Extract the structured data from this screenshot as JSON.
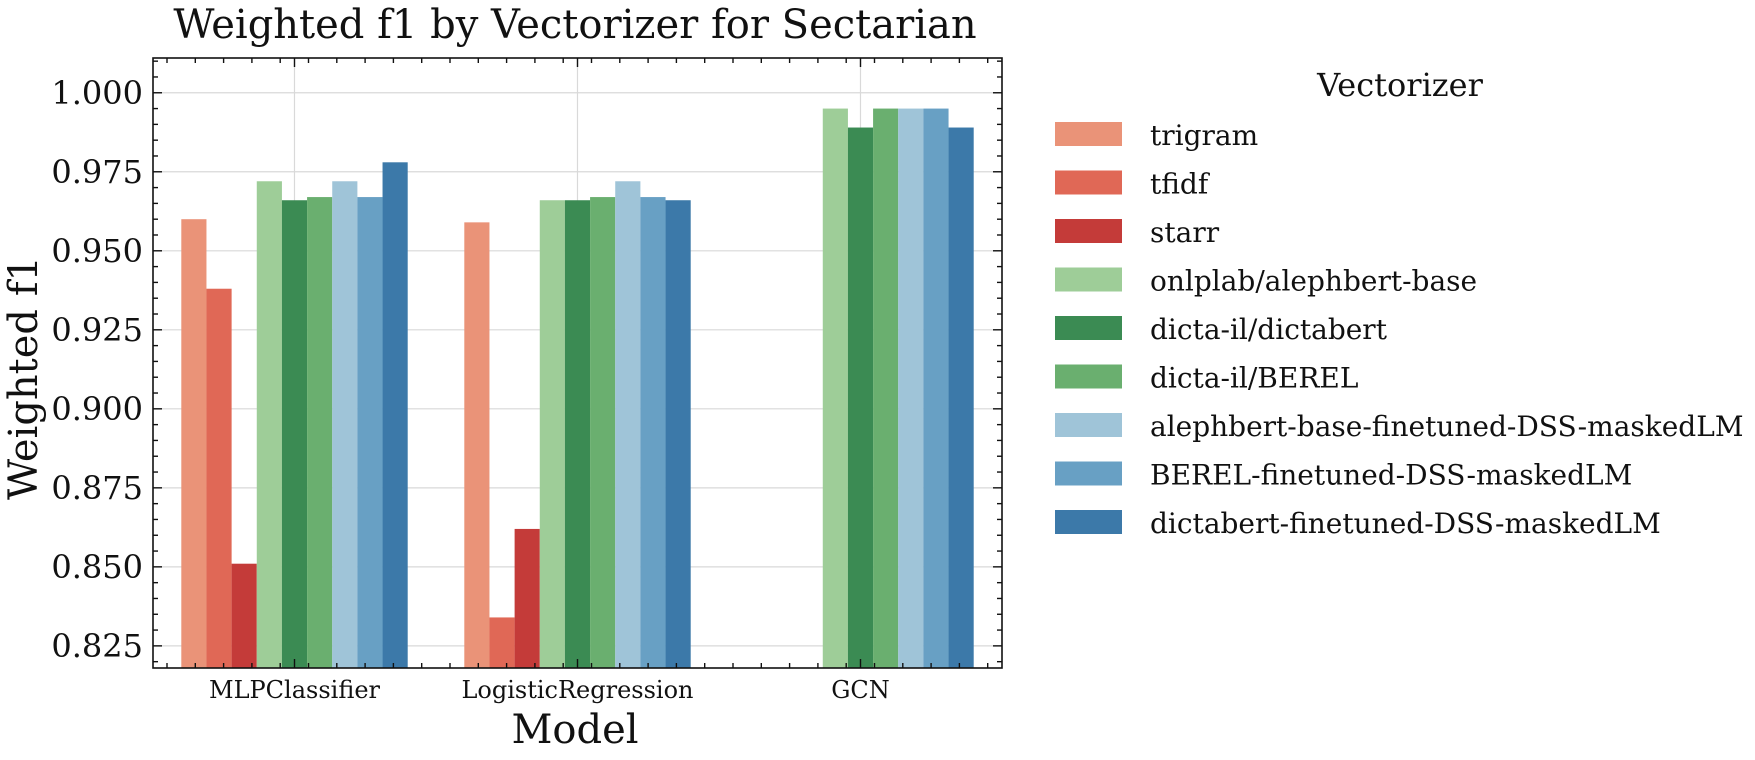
{
  "chart_data": {
    "type": "bar",
    "title": "Weighted f1 by Vectorizer for Sectarian",
    "xlabel": "Model",
    "ylabel": "Weighted f1",
    "ylim": [
      0.818,
      1.011
    ],
    "yticks": [
      "0.825",
      "0.850",
      "0.875",
      "0.900",
      "0.925",
      "0.950",
      "0.975",
      "1.000"
    ],
    "grid": true,
    "legend_title": "Vectorizer",
    "legend_position": "right, outside the plot",
    "categories": [
      "MLPClassifier",
      "LogisticRegression",
      "GCN"
    ],
    "series": [
      {
        "name": "trigram",
        "color": "#ea9378",
        "values": [
          0.96,
          0.959,
          null
        ]
      },
      {
        "name": "tfidf",
        "color": "#e06856",
        "values": [
          0.938,
          0.834,
          null
        ]
      },
      {
        "name": "starr",
        "color": "#c43b39",
        "values": [
          0.851,
          0.862,
          null
        ]
      },
      {
        "name": "onlplab/alephbert-base",
        "color": "#9ecd98",
        "values": [
          0.972,
          0.966,
          0.995
        ]
      },
      {
        "name": "dicta-il/dictabert",
        "color": "#3b8b53",
        "values": [
          0.966,
          0.966,
          0.989
        ]
      },
      {
        "name": "dicta-il/BEREL",
        "color": "#6aaf6f",
        "values": [
          0.967,
          0.967,
          0.995
        ]
      },
      {
        "name": "alephbert-base-finetuned-DSS-maskedLM",
        "color": "#9fc4d8",
        "values": [
          0.972,
          0.972,
          0.995
        ]
      },
      {
        "name": "BEREL-finetuned-DSS-maskedLM",
        "color": "#68a0c4",
        "values": [
          0.967,
          0.967,
          0.995
        ]
      },
      {
        "name": "dictabert-finetuned-DSS-maskedLM",
        "color": "#3c79a9",
        "values": [
          0.978,
          0.966,
          0.989
        ]
      }
    ]
  }
}
